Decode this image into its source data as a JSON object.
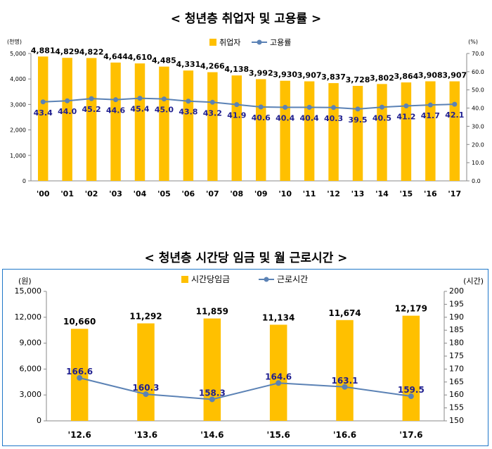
{
  "titles": {
    "chart1": "< 청년층 취업자 및 고용률 >",
    "chart2": "< 청년층 시간당 임금 및 월 근로시간 >"
  },
  "colors": {
    "bar": "#ffc000",
    "line": "#5b82b5",
    "label_dark": "#000000",
    "label_blue": "#1f1f8f",
    "border": "#1f77c9"
  },
  "chart_data": [
    {
      "type": "bar",
      "title": "< 청년층 취업자 및 고용률 >",
      "y_unit_left": "(천명)",
      "y_unit_right": "(%)",
      "categories": [
        "'00",
        "'01",
        "'02",
        "'03",
        "'04",
        "'05",
        "'06",
        "'07",
        "'08",
        "'09",
        "'10",
        "'11",
        "'12",
        "'13",
        "'14",
        "'15",
        "'16",
        "'17"
      ],
      "series": [
        {
          "name": "취업자",
          "type": "bar",
          "axis": "left",
          "values": [
            4881,
            4829,
            4822,
            4644,
            4610,
            4485,
            4331,
            4266,
            4138,
            3992,
            3930,
            3907,
            3837,
            3728,
            3802,
            3864,
            3908,
            3907
          ],
          "labels": [
            "4,881",
            "4,829",
            "4,822",
            "4,644",
            "4,610",
            "4,485",
            "4,331",
            "4,266",
            "4,138",
            "3,992",
            "3,930",
            "3,907",
            "3,837",
            "3,728",
            "3,802",
            "3,864",
            "3,908",
            "3,907"
          ]
        },
        {
          "name": "고용률",
          "type": "line",
          "axis": "right",
          "values": [
            43.4,
            44.0,
            45.2,
            44.6,
            45.4,
            45.0,
            43.8,
            43.2,
            41.9,
            40.6,
            40.4,
            40.4,
            40.3,
            39.5,
            40.5,
            41.2,
            41.7,
            42.1
          ],
          "labels": [
            "43.4",
            "44.0",
            "45.2",
            "44.6",
            "45.4",
            "45.0",
            "43.8",
            "43.2",
            "41.9",
            "40.6",
            "40.4",
            "40.4",
            "40.3",
            "39.5",
            "40.5",
            "41.2",
            "41.7",
            "42.1"
          ]
        }
      ],
      "ylim_left": [
        0,
        5000
      ],
      "yticks_left": [
        "0",
        "1,000",
        "2,000",
        "3,000",
        "4,000",
        "5,000"
      ],
      "ylim_right": [
        0,
        70
      ],
      "yticks_right": [
        "0.0",
        "10.0",
        "20.0",
        "30.0",
        "40.0",
        "50.0",
        "60.0",
        "70.0"
      ],
      "legend": "top-center",
      "grid": false
    },
    {
      "type": "bar",
      "title": "< 청년층 시간당 임금 및 월 근로시간 >",
      "y_unit_left": "(원)",
      "y_unit_right": "(시간)",
      "categories": [
        "'12.6",
        "'13.6",
        "'14.6",
        "'15.6",
        "'16.6",
        "'17.6"
      ],
      "series": [
        {
          "name": "시간당임금",
          "type": "bar",
          "axis": "left",
          "values": [
            10660,
            11292,
            11859,
            11134,
            11674,
            12179
          ],
          "labels": [
            "10,660",
            "11,292",
            "11,859",
            "11,134",
            "11,674",
            "12,179"
          ]
        },
        {
          "name": "근로시간",
          "type": "line",
          "axis": "right",
          "values": [
            166.6,
            160.3,
            158.3,
            164.6,
            163.1,
            159.5
          ],
          "labels": [
            "166.6",
            "160.3",
            "158.3",
            "164.6",
            "163.1",
            "159.5"
          ]
        }
      ],
      "ylim_left": [
        0,
        15000
      ],
      "yticks_left": [
        "0",
        "3,000",
        "6,000",
        "9,000",
        "12,000",
        "15,000"
      ],
      "ylim_right": [
        150,
        200
      ],
      "yticks_right": [
        "150",
        "155",
        "160",
        "165",
        "170",
        "175",
        "180",
        "185",
        "190",
        "195",
        "200"
      ],
      "legend": "top-center",
      "grid": false
    }
  ]
}
